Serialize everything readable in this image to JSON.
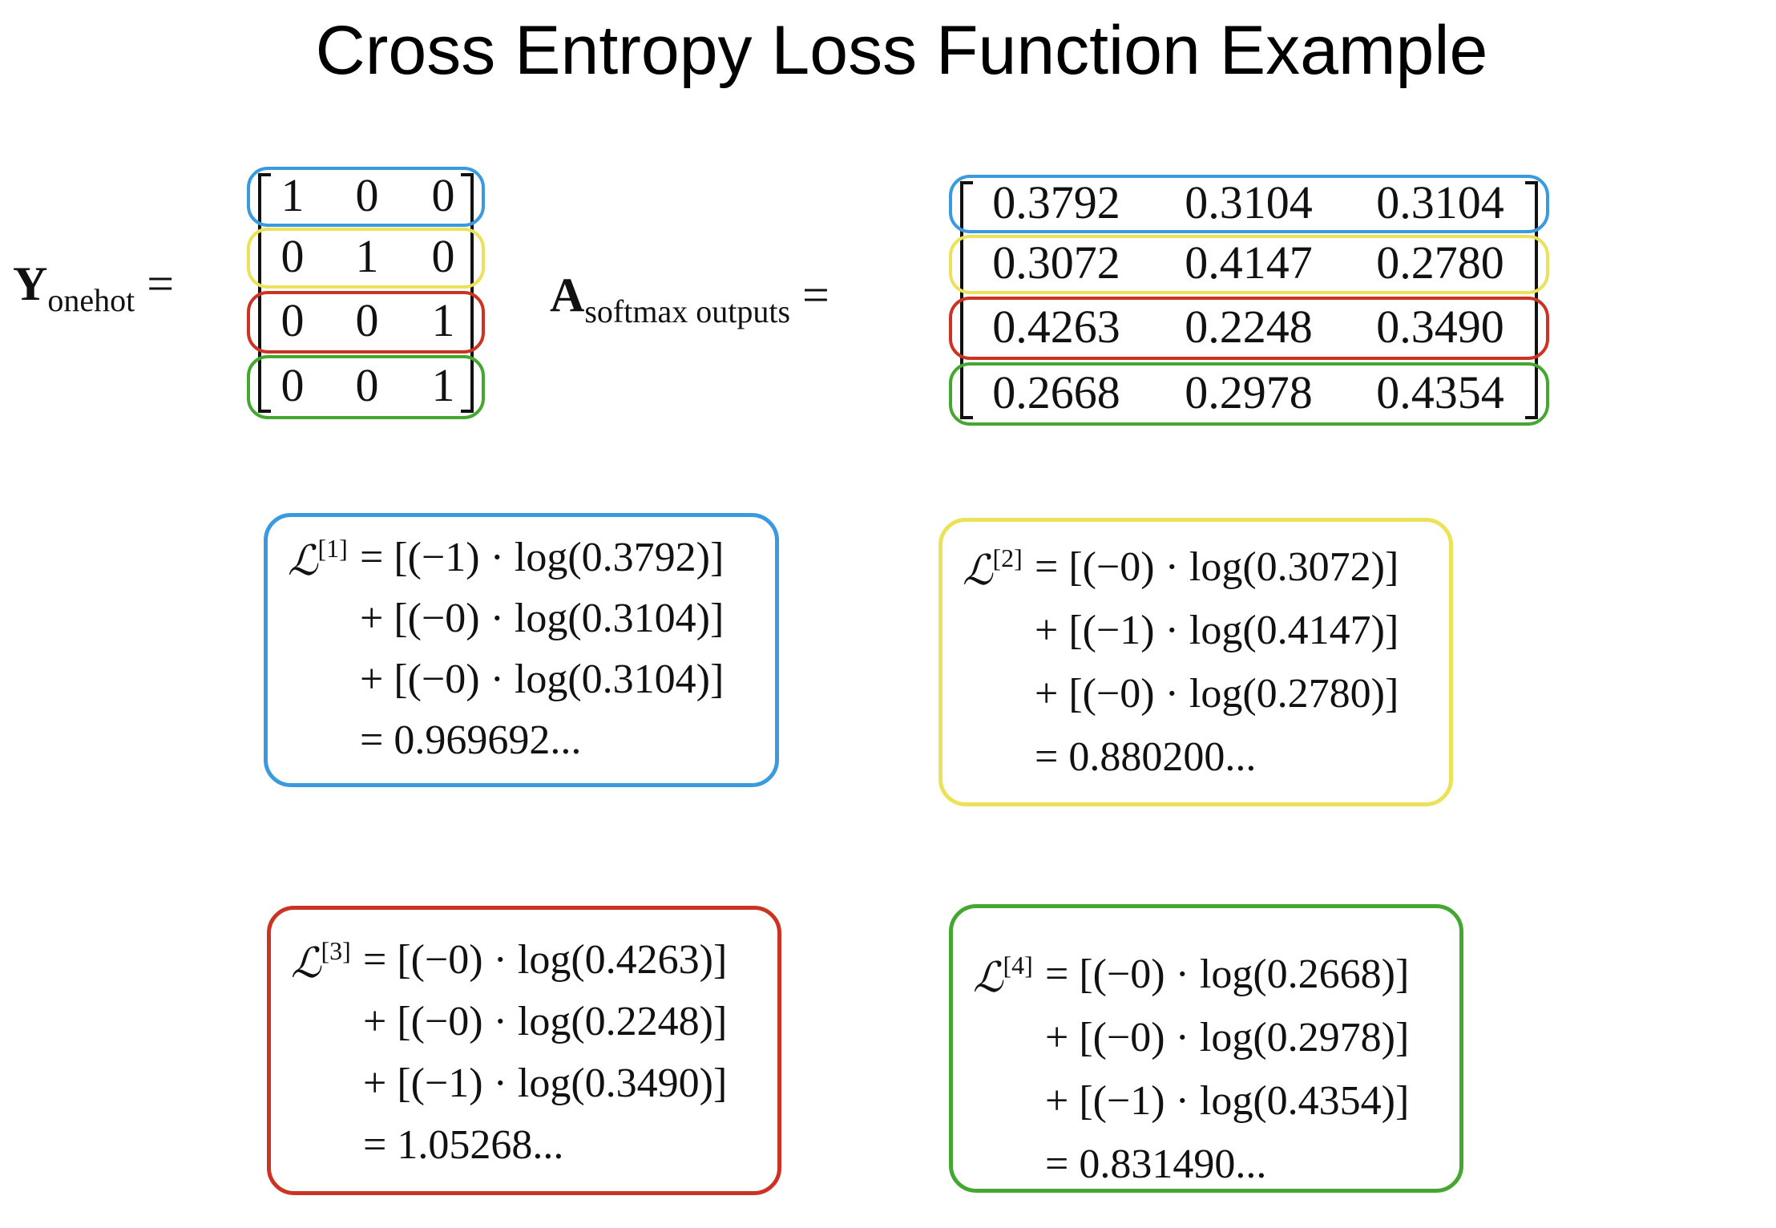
{
  "title": "Cross Entropy Loss Function Example",
  "y_label": {
    "symbol": "Y",
    "subscript": "onehot",
    "equals": "="
  },
  "a_label": {
    "symbol": "A",
    "subscript": "softmax outputs",
    "equals": "="
  },
  "colors": {
    "blue": "#3a9ae0",
    "yellow": "#ece25a",
    "red": "#cc3322",
    "green": "#44a830"
  },
  "y_matrix": [
    [
      "1",
      "0",
      "0"
    ],
    [
      "0",
      "1",
      "0"
    ],
    [
      "0",
      "0",
      "1"
    ],
    [
      "0",
      "0",
      "1"
    ]
  ],
  "a_matrix": [
    [
      "0.3792",
      "0.3104",
      "0.3104"
    ],
    [
      "0.3072",
      "0.4147",
      "0.2780"
    ],
    [
      "0.4263",
      "0.2248",
      "0.3490"
    ],
    [
      "0.2668",
      "0.2978",
      "0.4354"
    ]
  ],
  "losses": [
    {
      "symbol": "ℒ",
      "index": "[1]",
      "lines": [
        "= [(−1) · log(0.3792)]",
        "+ [(−0) · log(0.3104)]",
        "+ [(−0) · log(0.3104)]",
        "= 0.969692..."
      ]
    },
    {
      "symbol": "ℒ",
      "index": "[2]",
      "lines": [
        "= [(−0) · log(0.3072)]",
        "+ [(−1) · log(0.4147)]",
        "+ [(−0) · log(0.2780)]",
        "= 0.880200..."
      ]
    },
    {
      "symbol": "ℒ",
      "index": "[3]",
      "lines": [
        "= [(−0) · log(0.4263)]",
        "+ [(−0) · log(0.2248)]",
        "+ [(−1) · log(0.3490)]",
        "= 1.05268..."
      ]
    },
    {
      "symbol": "ℒ",
      "index": "[4]",
      "lines": [
        "= [(−0) · log(0.2668)]",
        "+ [(−0) · log(0.2978)]",
        "+ [(−1) · log(0.4354)]",
        "= 0.831490..."
      ]
    }
  ]
}
